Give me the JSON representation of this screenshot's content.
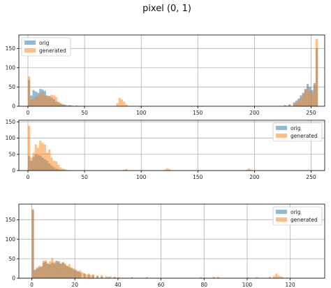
{
  "figure": {
    "title": "pixel (0, 1)",
    "colors": {
      "orig": "#1f77b4",
      "generated": "#ff7f0e"
    }
  },
  "chart_data": [
    {
      "type": "bar",
      "xlim": [
        -8,
        262
      ],
      "ylim": [
        0,
        185
      ],
      "xticks": [
        "0",
        "50",
        "100",
        "150",
        "200",
        "250"
      ],
      "xtick_values": [
        0,
        50,
        100,
        150,
        200,
        250
      ],
      "yticks": [
        "0",
        "50",
        "100",
        "150"
      ],
      "ytick_values": [
        0,
        50,
        100,
        150
      ],
      "grid": true,
      "legend": {
        "placement": "top-left",
        "entries": [
          "orig",
          "generated"
        ]
      },
      "series": [
        {
          "name": "orig",
          "color": "#1f77b4",
          "bin_width": 2,
          "x": [
            0,
            2,
            4,
            6,
            8,
            10,
            12,
            14,
            16,
            18,
            20,
            22,
            24,
            26,
            28,
            30,
            32,
            36,
            42,
            48,
            226,
            230,
            234,
            236,
            238,
            240,
            242,
            244,
            246,
            248,
            250,
            252,
            254
          ],
          "values": [
            68,
            28,
            42,
            38,
            35,
            45,
            43,
            40,
            28,
            26,
            22,
            18,
            12,
            10,
            7,
            5,
            4,
            3,
            2,
            1,
            3,
            5,
            10,
            15,
            20,
            28,
            35,
            45,
            58,
            50,
            42,
            60,
            150
          ]
        },
        {
          "name": "generated",
          "color": "#ff7f0e",
          "bin_width": 2,
          "x": [
            0,
            2,
            4,
            6,
            8,
            10,
            12,
            14,
            16,
            18,
            20,
            22,
            24,
            26,
            28,
            30,
            34,
            38,
            44,
            78,
            80,
            82,
            84,
            86,
            230,
            234,
            236,
            238,
            240,
            242,
            244,
            246,
            248,
            250,
            252,
            254
          ],
          "values": [
            77,
            18,
            20,
            25,
            28,
            34,
            38,
            30,
            26,
            27,
            30,
            28,
            24,
            12,
            8,
            4,
            3,
            2,
            1,
            8,
            22,
            18,
            12,
            5,
            4,
            8,
            10,
            15,
            22,
            30,
            42,
            48,
            40,
            35,
            55,
            175
          ]
        }
      ]
    },
    {
      "type": "bar",
      "xlim": [
        -8,
        262
      ],
      "ylim": [
        0,
        155
      ],
      "xticks": [
        "0",
        "50",
        "100",
        "150",
        "200",
        "250"
      ],
      "xtick_values": [
        0,
        50,
        100,
        150,
        200,
        250
      ],
      "yticks": [
        "0",
        "50",
        "100",
        "150"
      ],
      "ytick_values": [
        0,
        50,
        100,
        150
      ],
      "grid": true,
      "legend": {
        "placement": "top-right",
        "entries": [
          "orig",
          "generated"
        ]
      },
      "series": [
        {
          "name": "orig",
          "color": "#1f77b4",
          "bin_width": 2,
          "x": [
            0,
            2,
            4,
            6,
            8,
            10,
            12,
            14,
            16,
            18,
            20,
            22,
            24,
            26,
            28,
            30,
            32,
            36,
            220
          ],
          "values": [
            45,
            30,
            42,
            50,
            48,
            46,
            40,
            35,
            30,
            22,
            15,
            10,
            6,
            4,
            3,
            2,
            1,
            1,
            1
          ]
        },
        {
          "name": "generated",
          "color": "#ff7f0e",
          "bin_width": 2,
          "x": [
            0,
            2,
            4,
            6,
            8,
            10,
            12,
            14,
            16,
            18,
            20,
            22,
            24,
            26,
            28,
            30,
            32,
            34,
            84,
            86,
            120,
            122,
            124,
            192,
            194,
            196,
            212
          ],
          "values": [
            138,
            40,
            55,
            80,
            70,
            92,
            85,
            80,
            55,
            65,
            40,
            30,
            28,
            18,
            10,
            6,
            4,
            2,
            3,
            5,
            3,
            7,
            4,
            2,
            7,
            3,
            1
          ]
        }
      ]
    },
    {
      "type": "bar",
      "xlim": [
        -6,
        136
      ],
      "ylim": [
        0,
        190
      ],
      "xticks": [
        "0",
        "20",
        "40",
        "60",
        "80",
        "100",
        "120"
      ],
      "xtick_values": [
        0,
        20,
        40,
        60,
        80,
        100,
        120
      ],
      "yticks": [
        "0",
        "50",
        "100",
        "150"
      ],
      "ytick_values": [
        0,
        50,
        100,
        150
      ],
      "grid": true,
      "legend": {
        "placement": "top-right",
        "entries": [
          "orig",
          "generated"
        ]
      },
      "series": [
        {
          "name": "orig",
          "color": "#1f77b4",
          "bin_width": 1,
          "x": [
            0,
            1,
            2,
            3,
            4,
            5,
            6,
            7,
            8,
            9,
            10,
            11,
            12,
            13,
            14,
            15,
            16,
            17,
            18,
            19,
            20,
            21,
            22,
            24,
            26,
            28,
            30,
            32,
            35,
            38,
            42,
            80
          ],
          "values": [
            175,
            22,
            25,
            28,
            30,
            40,
            42,
            38,
            36,
            40,
            38,
            45,
            42,
            38,
            40,
            35,
            32,
            28,
            25,
            22,
            20,
            18,
            15,
            12,
            9,
            7,
            5,
            4,
            3,
            2,
            1,
            1
          ]
        },
        {
          "name": "generated",
          "color": "#ff7f0e",
          "bin_width": 1,
          "x": [
            0,
            1,
            2,
            3,
            4,
            5,
            6,
            7,
            8,
            9,
            10,
            11,
            12,
            13,
            14,
            15,
            16,
            17,
            18,
            19,
            20,
            21,
            22,
            23,
            24,
            25,
            26,
            27,
            28,
            30,
            32,
            34,
            36,
            38,
            40,
            46,
            53,
            78,
            84,
            86,
            100,
            104,
            110,
            112,
            113,
            114,
            115,
            116,
            118
          ],
          "values": [
            178,
            20,
            28,
            32,
            30,
            45,
            46,
            36,
            44,
            52,
            42,
            40,
            44,
            36,
            42,
            38,
            30,
            36,
            28,
            25,
            22,
            18,
            20,
            15,
            12,
            10,
            12,
            8,
            10,
            7,
            8,
            5,
            5,
            4,
            3,
            3,
            3,
            3,
            4,
            4,
            2,
            3,
            4,
            6,
            12,
            7,
            5,
            3,
            2
          ]
        }
      ]
    }
  ]
}
